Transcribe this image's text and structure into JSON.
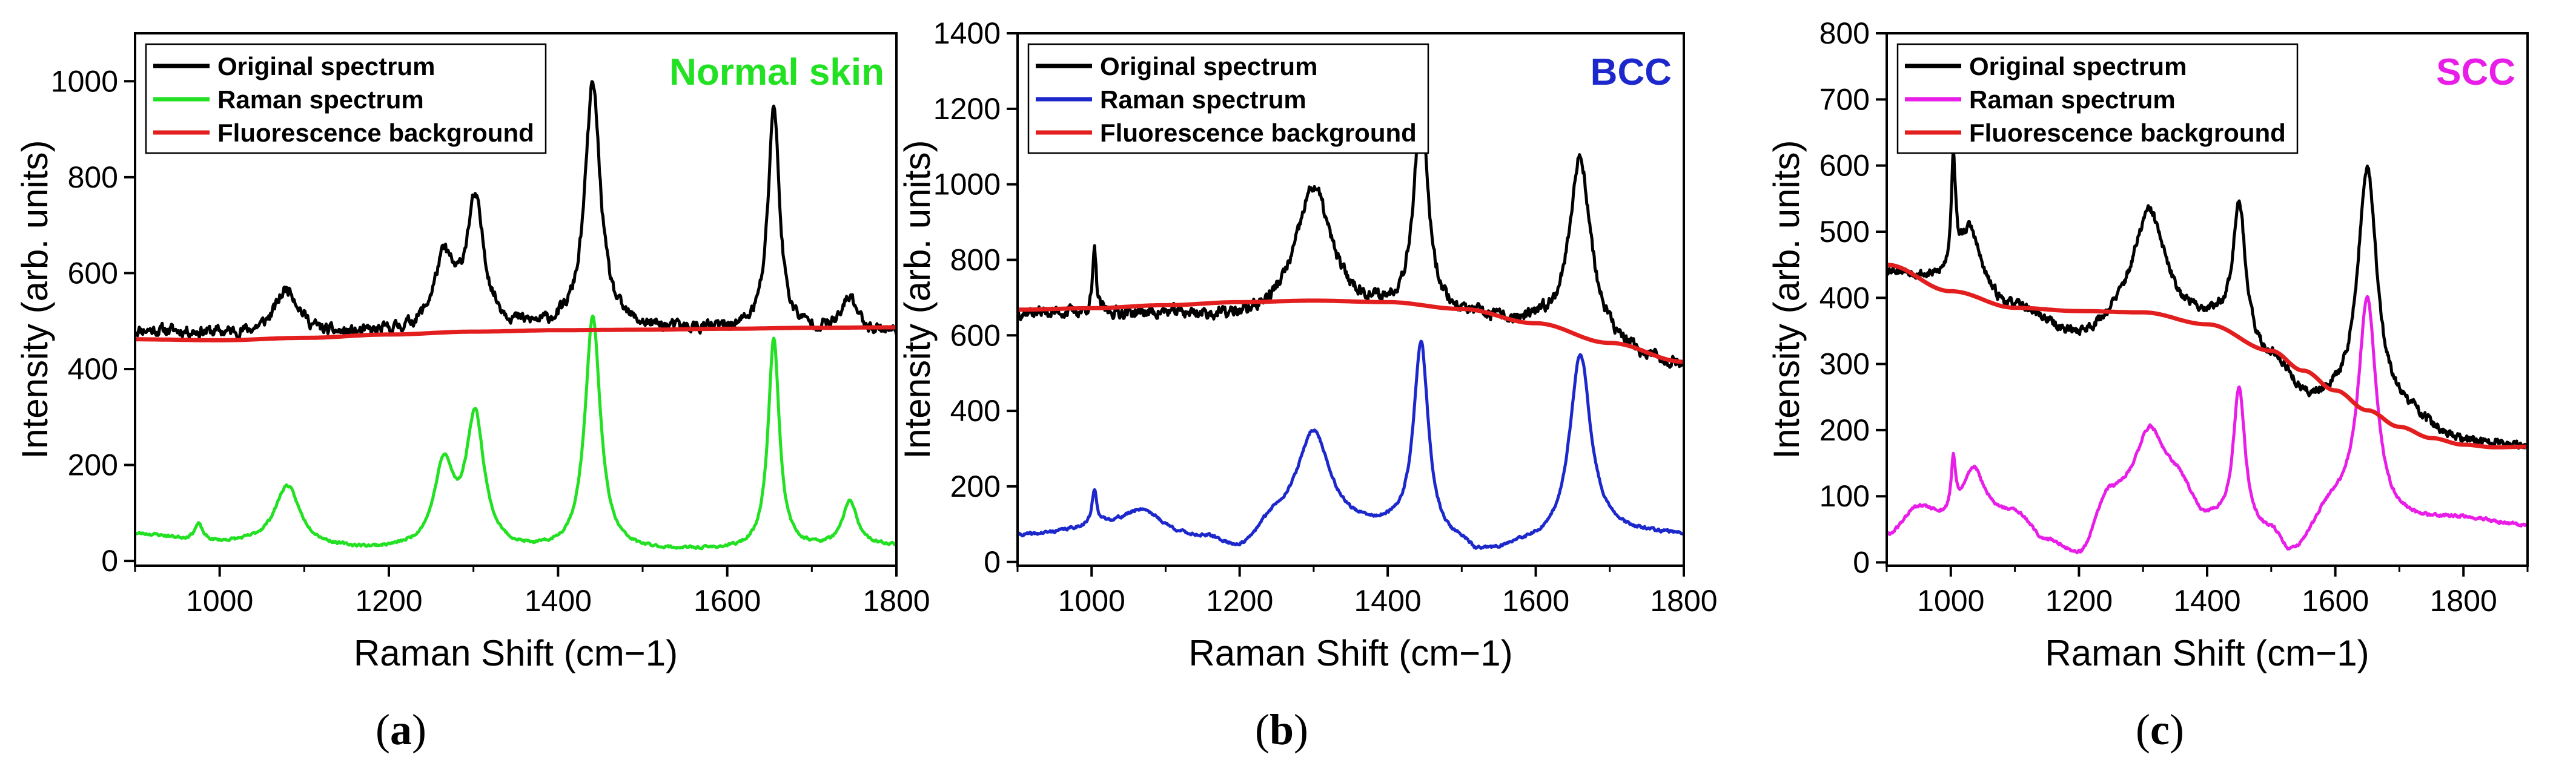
{
  "colors": {
    "frame": "#000000",
    "original": "#000000",
    "background_fit": "#e31e1e"
  },
  "captions": [
    {
      "open": "(",
      "letter": "a",
      "close": ")"
    },
    {
      "open": "(",
      "letter": "b",
      "close": ")"
    },
    {
      "open": "(",
      "letter": "c",
      "close": ")"
    }
  ],
  "chart_data": [
    {
      "type": "line",
      "panel": "a",
      "title": "Normal skin",
      "title_color": "#22e022",
      "xlabel": "Raman Shift (cm−1)",
      "ylabel": "Intensity (arb. units)",
      "xlim": [
        900,
        1800
      ],
      "ylim": [
        -10,
        1100
      ],
      "xticks": [
        1000,
        1200,
        1400,
        1600,
        1800
      ],
      "yticks": [
        0,
        200,
        400,
        600,
        800,
        1000
      ],
      "legend": [
        "Original spectrum",
        "Raman spectrum",
        "Fluorescence background"
      ],
      "legend_position": "top-left",
      "series": [
        {
          "name": "Original spectrum",
          "color": "#000000",
          "noise": 22,
          "seed": 11,
          "baseline": [
            [
              900,
              480
            ],
            [
              1100,
              465
            ],
            [
              1300,
              478
            ],
            [
              1500,
              480
            ],
            [
              1800,
              478
            ]
          ],
          "peaks": [
            [
              1080,
              100,
              18
            ],
            [
              1265,
              140,
              14
            ],
            [
              1302,
              260,
              13
            ],
            [
              1441,
              510,
              11
            ],
            [
              1655,
              470,
              8
            ],
            [
              1745,
              70,
              10
            ]
          ]
        },
        {
          "name": "Raman spectrum",
          "color": "#22e022",
          "noise": 5,
          "seed": 23,
          "baseline": [
            [
              900,
              55
            ],
            [
              1000,
              35
            ],
            [
              1200,
              20
            ],
            [
              1400,
              15
            ],
            [
              1600,
              20
            ],
            [
              1800,
              30
            ]
          ],
          "peaks": [
            [
              975,
              35,
              6
            ],
            [
              1080,
              125,
              18
            ],
            [
              1265,
              170,
              14
            ],
            [
              1302,
              275,
              13
            ],
            [
              1441,
              490,
              11
            ],
            [
              1655,
              440,
              8
            ],
            [
              1745,
              95,
              10
            ]
          ]
        },
        {
          "name": "Fluorescence background",
          "color": "#e31e1e",
          "points": [
            [
              900,
              462
            ],
            [
              1000,
              460
            ],
            [
              1100,
              465
            ],
            [
              1200,
              472
            ],
            [
              1300,
              478
            ],
            [
              1400,
              481
            ],
            [
              1500,
              482
            ],
            [
              1600,
              484
            ],
            [
              1700,
              486
            ],
            [
              1800,
              487
            ]
          ]
        }
      ]
    },
    {
      "type": "line",
      "panel": "b",
      "title": "BCC",
      "title_color": "#1c28cc",
      "xlabel": "Raman Shift (cm−1)",
      "ylabel": "Intensity (arb. units)",
      "xlim": [
        900,
        1800
      ],
      "ylim": [
        -10,
        1400
      ],
      "xticks": [
        1000,
        1200,
        1400,
        1600,
        1800
      ],
      "yticks": [
        0,
        200,
        400,
        600,
        800,
        1000,
        1200,
        1400
      ],
      "legend": [
        "Original spectrum",
        "Raman spectrum",
        "Fluorescence background"
      ],
      "legend_position": "top-left",
      "series": [
        {
          "name": "Original spectrum",
          "color": "#000000",
          "noise": 28,
          "seed": 37,
          "baseline": [
            [
              900,
              660
            ],
            [
              1100,
              655
            ],
            [
              1200,
              640
            ],
            [
              1300,
              660
            ],
            [
              1500,
              640
            ],
            [
              1600,
              620
            ],
            [
              1800,
              520
            ]
          ],
          "peaks": [
            [
              1004,
              160,
              3
            ],
            [
              1300,
              330,
              28
            ],
            [
              1445,
              540,
              12
            ],
            [
              1660,
              470,
              17
            ]
          ]
        },
        {
          "name": "Raman spectrum",
          "color": "#1c28cc",
          "noise": 7,
          "seed": 41,
          "baseline": [
            [
              900,
              70
            ],
            [
              1050,
              100
            ],
            [
              1150,
              60
            ],
            [
              1200,
              30
            ],
            [
              1250,
              100
            ],
            [
              1400,
              80
            ],
            [
              1500,
              40
            ],
            [
              1520,
              15
            ],
            [
              1600,
              40
            ],
            [
              1700,
              70
            ],
            [
              1800,
              70
            ]
          ],
          "peaks": [
            [
              1004,
              90,
              4
            ],
            [
              1070,
              40,
              25
            ],
            [
              1300,
              250,
              26
            ],
            [
              1445,
              510,
              12
            ],
            [
              1660,
              490,
              17
            ]
          ]
        },
        {
          "name": "Fluorescence background",
          "color": "#e31e1e",
          "points": [
            [
              900,
              668
            ],
            [
              1000,
              672
            ],
            [
              1100,
              680
            ],
            [
              1200,
              688
            ],
            [
              1300,
              692
            ],
            [
              1400,
              688
            ],
            [
              1500,
              670
            ],
            [
              1600,
              632
            ],
            [
              1700,
              580
            ],
            [
              1800,
              530
            ]
          ]
        }
      ]
    },
    {
      "type": "line",
      "panel": "c",
      "title": "SCC",
      "title_color": "#e81ee8",
      "xlabel": "Raman Shift (cm−1)",
      "ylabel": "Intensity (arb. units)",
      "xlim": [
        900,
        1900
      ],
      "ylim": [
        -5,
        800
      ],
      "xticks": [
        1000,
        1200,
        1400,
        1600,
        1800
      ],
      "yticks": [
        0,
        100,
        200,
        300,
        400,
        500,
        600,
        700,
        800
      ],
      "legend": [
        "Original spectrum",
        "Raman spectrum",
        "Fluorescence background"
      ],
      "legend_position": "top-left",
      "series": [
        {
          "name": "Original spectrum",
          "color": "#000000",
          "noise": 12,
          "seed": 53,
          "baseline": [
            [
              900,
              440
            ],
            [
              1000,
              420
            ],
            [
              1100,
              380
            ],
            [
              1200,
              340
            ],
            [
              1300,
              380
            ],
            [
              1400,
              360
            ],
            [
              1500,
              300
            ],
            [
              1560,
              240
            ],
            [
              1700,
              220
            ],
            [
              1800,
              180
            ],
            [
              1900,
              175
            ]
          ],
          "peaks": [
            [
              1004,
              170,
              4
            ],
            [
              1030,
              90,
              20
            ],
            [
              1310,
              150,
              28
            ],
            [
              1450,
              210,
              12
            ],
            [
              1650,
              370,
              18
            ]
          ]
        },
        {
          "name": "Raman spectrum",
          "color": "#e81ee8",
          "noise": 4,
          "seed": 61,
          "baseline": [
            [
              900,
              40
            ],
            [
              950,
              80
            ],
            [
              1000,
              60
            ],
            [
              1100,
              70
            ],
            [
              1150,
              30
            ],
            [
              1200,
              10
            ],
            [
              1250,
              100
            ],
            [
              1350,
              120
            ],
            [
              1400,
              60
            ],
            [
              1500,
              40
            ],
            [
              1530,
              10
            ],
            [
              1600,
              80
            ],
            [
              1700,
              60
            ],
            [
              1800,
              65
            ],
            [
              1900,
              55
            ]
          ],
          "peaks": [
            [
              1004,
              80,
              4
            ],
            [
              1035,
              80,
              20
            ],
            [
              1310,
              90,
              25
            ],
            [
              1450,
              210,
              11
            ],
            [
              1650,
              330,
              17
            ]
          ]
        },
        {
          "name": "Fluorescence background",
          "color": "#e31e1e",
          "points": [
            [
              900,
              450
            ],
            [
              1000,
              410
            ],
            [
              1100,
              385
            ],
            [
              1200,
              380
            ],
            [
              1300,
              378
            ],
            [
              1400,
              360
            ],
            [
              1500,
              320
            ],
            [
              1550,
              290
            ],
            [
              1600,
              260
            ],
            [
              1650,
              230
            ],
            [
              1700,
              205
            ],
            [
              1750,
              188
            ],
            [
              1800,
              178
            ],
            [
              1850,
              174
            ],
            [
              1900,
              175
            ]
          ]
        }
      ]
    }
  ]
}
